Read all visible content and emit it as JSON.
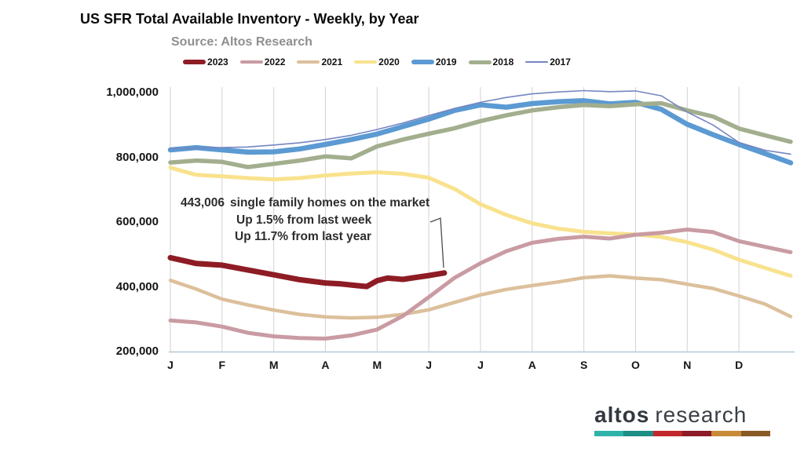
{
  "chart_data": {
    "type": "line",
    "title": "US SFR Total Available Inventory - Weekly, by Year",
    "subtitle": "Source: Altos Research",
    "legend_position": "top",
    "grid": "vertical-monthly",
    "x_axis": {
      "unit": "month",
      "tick_labels": [
        "J",
        "F",
        "M",
        "A",
        "M",
        "J",
        "J",
        "A",
        "S",
        "O",
        "N",
        "D"
      ],
      "range": [
        0,
        12
      ]
    },
    "y_axis": {
      "range": [
        200000,
        1000000
      ],
      "ticks": [
        {
          "value": 1000000,
          "label": "1,000,000"
        },
        {
          "value": 800000,
          "label": "800,000"
        },
        {
          "value": 600000,
          "label": "600,000"
        },
        {
          "value": 400000,
          "label": "400,000"
        },
        {
          "value": 200000,
          "label": "200,000"
        }
      ]
    },
    "annotation": {
      "value": "443,006",
      "text": "single family homes on the market",
      "line2": "Up 1.5% from last week",
      "line3": "Up 11.7% from last year"
    },
    "series": [
      {
        "name": "2023",
        "color": "#8e1c24",
        "line_width": 7,
        "x": [
          0,
          0.25,
          0.5,
          1,
          1.5,
          2,
          2.5,
          3,
          3.3,
          3.6,
          3.8,
          4,
          4.2,
          4.5,
          4.75,
          5,
          5.3
        ],
        "values": [
          490000,
          481000,
          472000,
          467000,
          452000,
          437000,
          422000,
          412000,
          409000,
          404000,
          401000,
          419000,
          427000,
          423000,
          429000,
          435000,
          443006
        ]
      },
      {
        "name": "2022",
        "color": "#c99ba3",
        "line_width": 5,
        "x": [
          0,
          0.5,
          1,
          1.5,
          2,
          2.5,
          3,
          3.5,
          4,
          4.5,
          5,
          5.5,
          6,
          6.5,
          7,
          7.5,
          8,
          8.5,
          9,
          9.5,
          10,
          10.5,
          11,
          11.5,
          12
        ],
        "values": [
          296000,
          290000,
          277000,
          258000,
          247000,
          242000,
          240000,
          250000,
          268000,
          310000,
          368000,
          428000,
          473000,
          510000,
          536000,
          548000,
          555000,
          549000,
          561000,
          567000,
          577000,
          569000,
          541000,
          524000,
          507000
        ]
      },
      {
        "name": "2021",
        "color": "#dcc09b",
        "line_width": 4.5,
        "x": [
          0,
          0.5,
          1,
          1.5,
          2,
          2.5,
          3,
          3.5,
          4,
          4.5,
          5,
          5.5,
          6,
          6.5,
          7,
          7.5,
          8,
          8.5,
          9,
          9.5,
          10,
          10.5,
          11,
          11.5,
          12
        ],
        "values": [
          420000,
          393000,
          362000,
          344000,
          328000,
          315000,
          307000,
          304000,
          306000,
          315000,
          329000,
          352000,
          375000,
          392000,
          404000,
          415000,
          428000,
          434000,
          427000,
          422000,
          408000,
          395000,
          372000,
          347000,
          308000
        ]
      },
      {
        "name": "2020",
        "color": "#f8e28d",
        "line_width": 5,
        "x": [
          0,
          0.5,
          1,
          1.5,
          2,
          2.5,
          3,
          3.5,
          4,
          4.5,
          5,
          5.5,
          6,
          6.5,
          7,
          7.5,
          8,
          8.5,
          9,
          9.5,
          10,
          10.5,
          11,
          11.5,
          12
        ],
        "values": [
          768000,
          746000,
          741000,
          736000,
          732000,
          736000,
          744000,
          750000,
          754000,
          749000,
          737000,
          702000,
          655000,
          622000,
          596000,
          580000,
          570000,
          565000,
          562000,
          554000,
          538000,
          515000,
          484000,
          459000,
          434000
        ]
      },
      {
        "name": "2019",
        "color": "#5b9ad2",
        "line_width": 6.5,
        "x": [
          0,
          0.5,
          1,
          1.5,
          2,
          2.5,
          3,
          3.5,
          4,
          4.5,
          5,
          5.5,
          6,
          6.5,
          7,
          7.5,
          8,
          8.5,
          9,
          9.5,
          10,
          10.5,
          11,
          11.5,
          12
        ],
        "values": [
          823000,
          830000,
          823000,
          816000,
          817000,
          826000,
          840000,
          855000,
          872000,
          895000,
          918000,
          945000,
          962000,
          955000,
          966000,
          972000,
          975000,
          965000,
          970000,
          948000,
          902000,
          870000,
          840000,
          812000,
          783000
        ]
      },
      {
        "name": "2018",
        "color": "#a2ae8e",
        "line_width": 5.5,
        "x": [
          0,
          0.5,
          1,
          1.5,
          2,
          2.5,
          3,
          3.5,
          4,
          4.5,
          5,
          5.5,
          6,
          6.5,
          7,
          7.5,
          8,
          8.5,
          9,
          9.5,
          10,
          10.5,
          11,
          11.5,
          12
        ],
        "values": [
          784000,
          790000,
          786000,
          770000,
          780000,
          790000,
          803000,
          797000,
          834000,
          855000,
          873000,
          890000,
          912000,
          930000,
          945000,
          955000,
          962000,
          958000,
          964000,
          967000,
          945000,
          926000,
          889000,
          868000,
          848000
        ]
      },
      {
        "name": "2017",
        "color": "#7586c1",
        "line_width": 1.6,
        "x": [
          0,
          0.5,
          1,
          1.5,
          2,
          2.5,
          3,
          3.5,
          4,
          4.5,
          5,
          5.5,
          6,
          6.5,
          7,
          7.5,
          8,
          8.5,
          9,
          9.5,
          10,
          10.5,
          11,
          11.5,
          12
        ],
        "values": [
          827000,
          828000,
          830000,
          832000,
          838000,
          845000,
          855000,
          868000,
          886000,
          906000,
          929000,
          951000,
          970000,
          985000,
          996000,
          1002000,
          1006000,
          1003000,
          1005000,
          990000,
          940000,
          900000,
          846000,
          822000,
          810000
        ]
      }
    ]
  },
  "logo": {
    "brand_bold": "altos",
    "brand_light": "research",
    "bar_colors": [
      "#2fb3a9",
      "#1d8d86",
      "#c1272d",
      "#8d1b28",
      "#c78b38",
      "#8a5a26"
    ]
  }
}
